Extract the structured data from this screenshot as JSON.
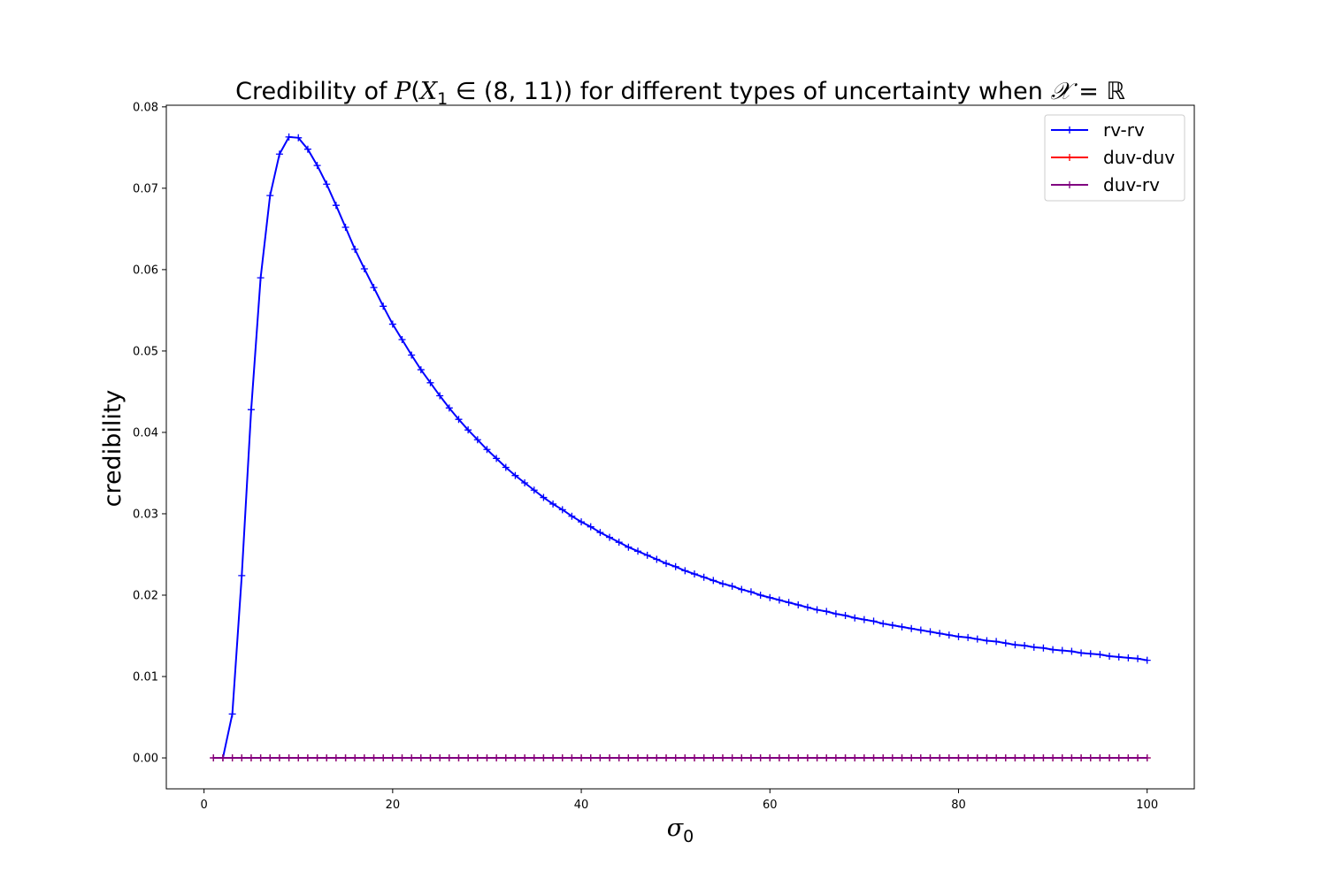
{
  "chart_data": {
    "type": "line",
    "title_parts": {
      "prefix": "Credibility of ",
      "expr_P": "P",
      "expr_open": "(",
      "expr_X": "X",
      "expr_sub": "1",
      "expr_in": " ∈ (8, 11)",
      "expr_close": ")",
      "middle": " for different types of uncertainty when ",
      "expr_calX": "𝒳",
      "expr_eq": " = ",
      "expr_R": "ℝ"
    },
    "xlabel": "σ",
    "xlabel_sub": "0",
    "ylabel": "credibility",
    "xlim": [
      -4,
      105
    ],
    "ylim": [
      -0.0038,
      0.0802
    ],
    "xticks": [
      0,
      20,
      40,
      60,
      80,
      100
    ],
    "yticks": [
      0.0,
      0.01,
      0.02,
      0.03,
      0.04,
      0.05,
      0.06,
      0.07,
      0.08
    ],
    "ytick_labels": [
      "0.00",
      "0.01",
      "0.02",
      "0.03",
      "0.04",
      "0.05",
      "0.06",
      "0.07",
      "0.08"
    ],
    "legend_position": "upper right",
    "grid": false,
    "x_range": {
      "start": 1,
      "end": 100,
      "step": 1
    },
    "series": [
      {
        "name": "rv-rv",
        "color": "#0000ff",
        "marker": "+",
        "values": [
          0.0,
          0.0,
          0.0054,
          0.0224,
          0.0428,
          0.059,
          0.0691,
          0.0742,
          0.0763,
          0.0762,
          0.0748,
          0.0728,
          0.0705,
          0.0679,
          0.0652,
          0.0625,
          0.0601,
          0.0578,
          0.0555,
          0.0533,
          0.0514,
          0.0495,
          0.0477,
          0.0461,
          0.0445,
          0.043,
          0.0416,
          0.0403,
          0.0391,
          0.0379,
          0.0368,
          0.0357,
          0.0347,
          0.0338,
          0.0329,
          0.032,
          0.0312,
          0.0305,
          0.0297,
          0.029,
          0.0284,
          0.0277,
          0.0271,
          0.0265,
          0.0259,
          0.0254,
          0.0249,
          0.0244,
          0.0239,
          0.0235,
          0.023,
          0.0226,
          0.0222,
          0.0218,
          0.0214,
          0.0211,
          0.0207,
          0.0204,
          0.02,
          0.0197,
          0.0194,
          0.0191,
          0.0188,
          0.0185,
          0.0182,
          0.018,
          0.0177,
          0.0175,
          0.0172,
          0.017,
          0.0168,
          0.0165,
          0.0163,
          0.0161,
          0.0159,
          0.0157,
          0.0155,
          0.0153,
          0.0151,
          0.0149,
          0.0148,
          0.0146,
          0.0144,
          0.0143,
          0.0141,
          0.0139,
          0.0138,
          0.0136,
          0.0135,
          0.0133,
          0.0132,
          0.0131,
          0.0129,
          0.0128,
          0.0127,
          0.0125,
          0.0124,
          0.0123,
          0.0122,
          0.012
        ]
      },
      {
        "name": "duv-duv",
        "color": "#ff0000",
        "marker": "+",
        "constant": 0.0
      },
      {
        "name": "duv-rv",
        "color": "#800080",
        "marker": "+",
        "constant": 0.0
      }
    ]
  }
}
